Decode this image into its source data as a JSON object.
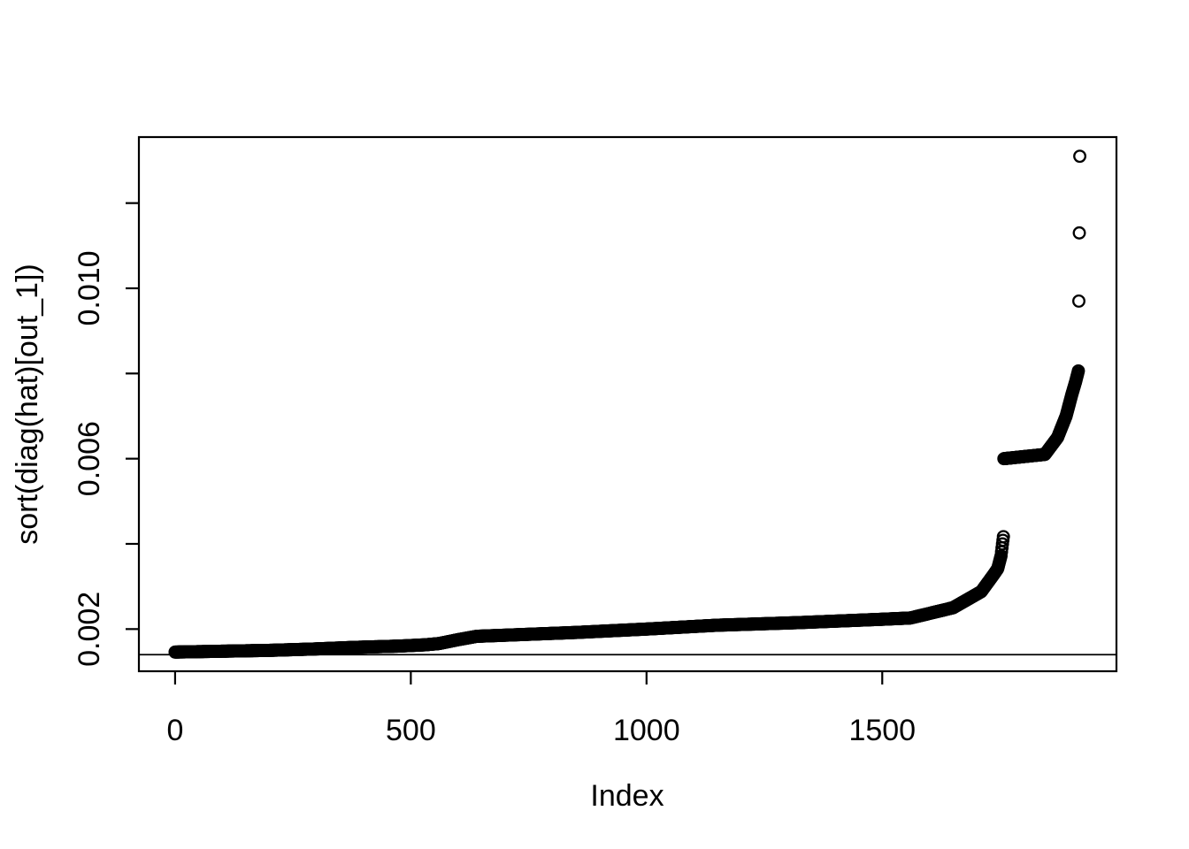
{
  "page": {
    "background": "#ffffff",
    "foreground": "#000000"
  },
  "chart_data": {
    "type": "scatter",
    "title": "",
    "xlabel": "Index",
    "ylabel": "sort(diag(hat)[out_1])",
    "marker": "open-circle",
    "marker_color": "#000000",
    "grid": false,
    "legend": false,
    "n_points": 1920,
    "xlim": [
      -76.8,
      1996.8
    ],
    "ylim": [
      0.00101,
      0.01355
    ],
    "x_tick_labels": [
      {
        "value": 0,
        "label": "0"
      },
      {
        "value": 500,
        "label": "500"
      },
      {
        "value": 1000,
        "label": "1000"
      },
      {
        "value": 1500,
        "label": "1500"
      }
    ],
    "y_ticks": [
      0.002,
      0.004,
      0.006,
      0.008,
      0.01,
      0.012
    ],
    "y_tick_labels": [
      {
        "value": 0.002,
        "label": "0.002"
      },
      {
        "value": 0.006,
        "label": "0.006"
      },
      {
        "value": 0.01,
        "label": "0.010"
      }
    ],
    "reference_line_y": 0.0014,
    "profile": [
      [
        0,
        0.00146
      ],
      [
        100,
        0.00148
      ],
      [
        200,
        0.0015
      ],
      [
        290,
        0.00153
      ],
      [
        380,
        0.00157
      ],
      [
        475,
        0.0016
      ],
      [
        530,
        0.00163
      ],
      [
        560,
        0.00166
      ],
      [
        600,
        0.00175
      ],
      [
        640,
        0.00183
      ],
      [
        850,
        0.00192
      ],
      [
        1000,
        0.002
      ],
      [
        1150,
        0.00209
      ],
      [
        1320,
        0.00215
      ],
      [
        1500,
        0.00223
      ],
      [
        1560,
        0.00226
      ],
      [
        1650,
        0.0025
      ],
      [
        1710,
        0.00288
      ],
      [
        1737,
        0.00329
      ],
      [
        1745,
        0.00342
      ],
      [
        1748,
        0.00355
      ],
      [
        1752,
        0.00372
      ],
      [
        1755,
        0.004
      ],
      [
        1757,
        0.00417
      ],
      [
        1758,
        0.006
      ],
      [
        1845,
        0.0061
      ],
      [
        1872,
        0.0065
      ],
      [
        1890,
        0.007
      ],
      [
        1902,
        0.0075
      ],
      [
        1910,
        0.0078
      ],
      [
        1916,
        0.00806
      ]
    ],
    "outliers": [
      [
        1917,
        0.0097
      ],
      [
        1918,
        0.0113
      ],
      [
        1919,
        0.0131
      ]
    ]
  }
}
